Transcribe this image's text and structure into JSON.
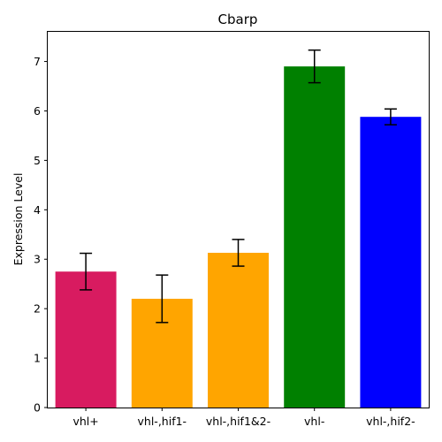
{
  "chart_data": {
    "type": "bar",
    "title": "Cbarp",
    "xlabel": "",
    "ylabel": "Expression Level",
    "ylim": [
      0,
      7.6
    ],
    "yticks": [
      0,
      1,
      2,
      3,
      4,
      5,
      6,
      7
    ],
    "grid": false,
    "categories": [
      "vhl+",
      "vhl-,hif1-",
      "vhl-,hif1&2-",
      "vhl-",
      "vhl-,hif2-"
    ],
    "values": [
      2.75,
      2.2,
      3.13,
      6.9,
      5.88
    ],
    "errors": [
      0.37,
      0.48,
      0.27,
      0.33,
      0.16
    ],
    "colors": [
      "#d81b60",
      "#ffa500",
      "#ffa500",
      "#008000",
      "#0000ff"
    ]
  }
}
